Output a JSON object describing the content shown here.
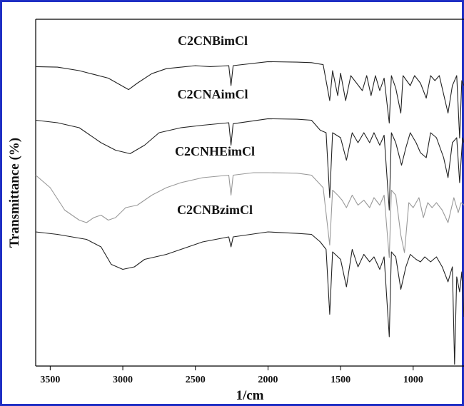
{
  "chart_data": {
    "type": "line",
    "title": "",
    "xlabel": "1/cm",
    "ylabel": "Transmittance (%)",
    "xlim": [
      3600,
      650
    ],
    "x_reversed": true,
    "x_ticks": [
      3500,
      3000,
      2500,
      2000,
      1500,
      1000
    ],
    "y_ticks": [],
    "grid": false,
    "legend": "inline labels above each trace",
    "colors": {
      "frame": "#1f2fc4",
      "default_trace": "#222222",
      "light_trace": "#999999",
      "axis": "#000000"
    },
    "series": [
      {
        "name": "C2CNBimCl",
        "color": "#222222",
        "points": [
          [
            3600,
            0.12
          ],
          [
            3450,
            0.13
          ],
          [
            3300,
            0.2
          ],
          [
            3100,
            0.35
          ],
          [
            2960,
            0.58
          ],
          [
            2900,
            0.45
          ],
          [
            2800,
            0.26
          ],
          [
            2700,
            0.16
          ],
          [
            2500,
            0.1
          ],
          [
            2400,
            0.12
          ],
          [
            2270,
            0.1
          ],
          [
            2255,
            0.5
          ],
          [
            2240,
            0.1
          ],
          [
            2000,
            0.02
          ],
          [
            1800,
            0.03
          ],
          [
            1700,
            0.04
          ],
          [
            1620,
            0.08
          ],
          [
            1575,
            0.8
          ],
          [
            1555,
            0.2
          ],
          [
            1520,
            0.7
          ],
          [
            1500,
            0.25
          ],
          [
            1465,
            0.8
          ],
          [
            1430,
            0.3
          ],
          [
            1390,
            0.45
          ],
          [
            1350,
            0.6
          ],
          [
            1320,
            0.3
          ],
          [
            1290,
            0.7
          ],
          [
            1260,
            0.3
          ],
          [
            1230,
            0.6
          ],
          [
            1200,
            0.35
          ],
          [
            1165,
            1.25
          ],
          [
            1150,
            0.3
          ],
          [
            1120,
            0.55
          ],
          [
            1085,
            1.05
          ],
          [
            1070,
            0.3
          ],
          [
            1020,
            0.5
          ],
          [
            990,
            0.3
          ],
          [
            950,
            0.45
          ],
          [
            910,
            0.75
          ],
          [
            880,
            0.3
          ],
          [
            850,
            0.4
          ],
          [
            820,
            0.3
          ],
          [
            760,
            1.05
          ],
          [
            730,
            0.5
          ],
          [
            700,
            0.3
          ],
          [
            680,
            1.55
          ],
          [
            665,
            0.4
          ],
          [
            650,
            0.5
          ]
        ]
      },
      {
        "name": "C2CNAimCl",
        "color": "#222222",
        "points": [
          [
            3600,
            0.05
          ],
          [
            3450,
            0.1
          ],
          [
            3300,
            0.2
          ],
          [
            3150,
            0.5
          ],
          [
            3050,
            0.65
          ],
          [
            2950,
            0.72
          ],
          [
            2850,
            0.55
          ],
          [
            2750,
            0.3
          ],
          [
            2600,
            0.2
          ],
          [
            2450,
            0.15
          ],
          [
            2270,
            0.1
          ],
          [
            2255,
            0.55
          ],
          [
            2240,
            0.12
          ],
          [
            2000,
            0.02
          ],
          [
            1800,
            0.03
          ],
          [
            1700,
            0.05
          ],
          [
            1640,
            0.25
          ],
          [
            1600,
            0.3
          ],
          [
            1575,
            1.6
          ],
          [
            1555,
            0.3
          ],
          [
            1500,
            0.4
          ],
          [
            1460,
            0.85
          ],
          [
            1420,
            0.3
          ],
          [
            1380,
            0.5
          ],
          [
            1340,
            0.3
          ],
          [
            1300,
            0.5
          ],
          [
            1270,
            0.3
          ],
          [
            1230,
            0.55
          ],
          [
            1200,
            0.35
          ],
          [
            1165,
            1.85
          ],
          [
            1150,
            0.3
          ],
          [
            1120,
            0.5
          ],
          [
            1080,
            0.95
          ],
          [
            1050,
            0.6
          ],
          [
            1020,
            0.3
          ],
          [
            980,
            0.5
          ],
          [
            950,
            0.7
          ],
          [
            910,
            0.8
          ],
          [
            880,
            0.3
          ],
          [
            840,
            0.4
          ],
          [
            790,
            0.8
          ],
          [
            760,
            1.2
          ],
          [
            730,
            0.5
          ],
          [
            700,
            0.4
          ],
          [
            680,
            1.3
          ],
          [
            660,
            0.4
          ],
          [
            650,
            0.5
          ]
        ]
      },
      {
        "name": "C2CNHEimCl",
        "color": "#999999",
        "points": [
          [
            3600,
            0.05
          ],
          [
            3500,
            0.3
          ],
          [
            3400,
            0.75
          ],
          [
            3300,
            0.95
          ],
          [
            3250,
            1.0
          ],
          [
            3200,
            0.9
          ],
          [
            3150,
            0.85
          ],
          [
            3100,
            0.95
          ],
          [
            3050,
            0.9
          ],
          [
            2980,
            0.7
          ],
          [
            2900,
            0.65
          ],
          [
            2800,
            0.45
          ],
          [
            2700,
            0.3
          ],
          [
            2600,
            0.2
          ],
          [
            2450,
            0.1
          ],
          [
            2270,
            0.05
          ],
          [
            2255,
            0.45
          ],
          [
            2240,
            0.05
          ],
          [
            2100,
            0.0
          ],
          [
            2000,
            0.0
          ],
          [
            1800,
            0.01
          ],
          [
            1700,
            0.05
          ],
          [
            1620,
            0.3
          ],
          [
            1575,
            1.45
          ],
          [
            1555,
            0.35
          ],
          [
            1520,
            0.45
          ],
          [
            1490,
            0.55
          ],
          [
            1460,
            0.7
          ],
          [
            1420,
            0.45
          ],
          [
            1380,
            0.65
          ],
          [
            1340,
            0.55
          ],
          [
            1300,
            0.7
          ],
          [
            1270,
            0.5
          ],
          [
            1230,
            0.65
          ],
          [
            1200,
            0.45
          ],
          [
            1165,
            1.7
          ],
          [
            1150,
            0.35
          ],
          [
            1120,
            0.45
          ],
          [
            1085,
            1.25
          ],
          [
            1060,
            1.6
          ],
          [
            1030,
            0.6
          ],
          [
            1000,
            0.7
          ],
          [
            960,
            0.5
          ],
          [
            930,
            0.9
          ],
          [
            900,
            0.6
          ],
          [
            870,
            0.7
          ],
          [
            840,
            0.6
          ],
          [
            800,
            0.75
          ],
          [
            760,
            1.0
          ],
          [
            720,
            0.5
          ],
          [
            690,
            0.8
          ],
          [
            670,
            0.6
          ],
          [
            650,
            0.65
          ]
        ]
      },
      {
        "name": "C2CNBzimCl",
        "color": "#222222",
        "points": [
          [
            3600,
            0.0
          ],
          [
            3450,
            0.05
          ],
          [
            3350,
            0.1
          ],
          [
            3250,
            0.15
          ],
          [
            3150,
            0.3
          ],
          [
            3080,
            0.65
          ],
          [
            3000,
            0.75
          ],
          [
            2920,
            0.7
          ],
          [
            2850,
            0.55
          ],
          [
            2700,
            0.45
          ],
          [
            2600,
            0.35
          ],
          [
            2450,
            0.2
          ],
          [
            2270,
            0.1
          ],
          [
            2255,
            0.3
          ],
          [
            2240,
            0.1
          ],
          [
            2000,
            0.0
          ],
          [
            1800,
            0.03
          ],
          [
            1700,
            0.05
          ],
          [
            1640,
            0.2
          ],
          [
            1600,
            0.35
          ],
          [
            1575,
            1.65
          ],
          [
            1555,
            0.4
          ],
          [
            1500,
            0.55
          ],
          [
            1460,
            1.1
          ],
          [
            1420,
            0.35
          ],
          [
            1380,
            0.7
          ],
          [
            1340,
            0.45
          ],
          [
            1300,
            0.6
          ],
          [
            1270,
            0.5
          ],
          [
            1230,
            0.75
          ],
          [
            1200,
            0.5
          ],
          [
            1165,
            2.1
          ],
          [
            1150,
            0.4
          ],
          [
            1120,
            0.5
          ],
          [
            1085,
            1.15
          ],
          [
            1050,
            0.7
          ],
          [
            1020,
            0.45
          ],
          [
            980,
            0.55
          ],
          [
            950,
            0.6
          ],
          [
            920,
            0.5
          ],
          [
            880,
            0.6
          ],
          [
            840,
            0.5
          ],
          [
            800,
            0.7
          ],
          [
            760,
            1.0
          ],
          [
            730,
            0.7
          ],
          [
            715,
            2.65
          ],
          [
            700,
            0.9
          ],
          [
            680,
            1.2
          ],
          [
            665,
            0.8
          ],
          [
            650,
            1.7
          ]
        ]
      }
    ]
  }
}
